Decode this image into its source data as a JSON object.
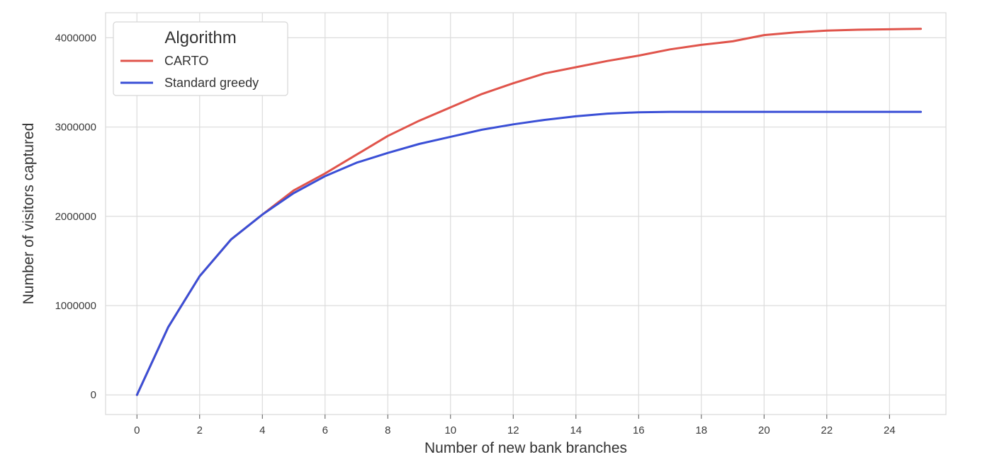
{
  "chart_data": {
    "type": "line",
    "xlabel": "Number of new bank branches",
    "ylabel": "Number of visitors captured",
    "xlim": [
      -1,
      25.8
    ],
    "ylim": [
      -220000,
      4280000
    ],
    "xticks": [
      0,
      2,
      4,
      6,
      8,
      10,
      12,
      14,
      16,
      18,
      20,
      22,
      24
    ],
    "yticks": [
      0,
      1000000,
      2000000,
      3000000,
      4000000
    ],
    "grid": true,
    "legend": {
      "title": "Algorithm",
      "placement": "top-left"
    },
    "x": [
      0,
      1,
      2,
      3,
      4,
      5,
      6,
      7,
      8,
      9,
      10,
      11,
      12,
      13,
      14,
      15,
      16,
      17,
      18,
      19,
      20,
      21,
      22,
      23,
      24,
      25
    ],
    "series": [
      {
        "name": "CARTO",
        "color": "#e0544b",
        "values": [
          0,
          760000,
          1330000,
          1740000,
          2020000,
          2290000,
          2480000,
          2690000,
          2900000,
          3070000,
          3220000,
          3370000,
          3490000,
          3600000,
          3670000,
          3740000,
          3800000,
          3870000,
          3920000,
          3960000,
          4030000,
          4060000,
          4080000,
          4090000,
          4095000,
          4100000
        ]
      },
      {
        "name": "Standard greedy",
        "color": "#3a4fd6",
        "values": [
          0,
          760000,
          1330000,
          1740000,
          2020000,
          2260000,
          2450000,
          2600000,
          2710000,
          2810000,
          2890000,
          2970000,
          3030000,
          3080000,
          3120000,
          3150000,
          3165000,
          3170000,
          3170000,
          3170000,
          3170000,
          3170000,
          3170000,
          3170000,
          3170000,
          3170000
        ]
      }
    ]
  }
}
